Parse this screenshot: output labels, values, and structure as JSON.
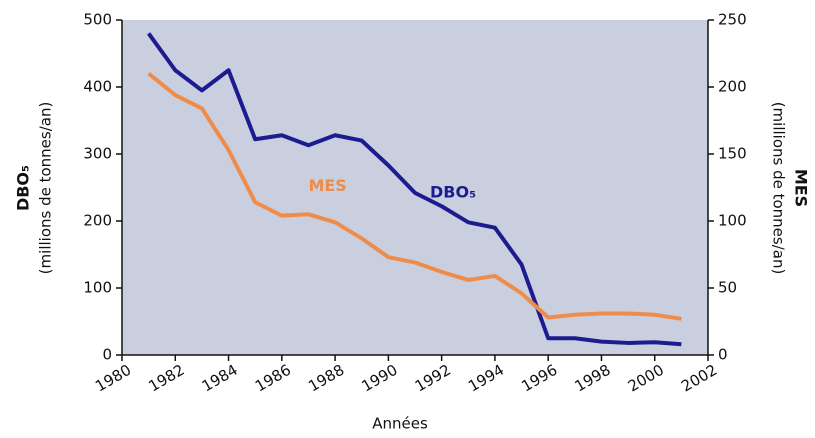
{
  "chart_data": {
    "type": "line",
    "x": [
      1981,
      1982,
      1983,
      1984,
      1985,
      1986,
      1987,
      1988,
      1989,
      1990,
      1991,
      1992,
      1993,
      1994,
      1995,
      1996,
      1997,
      1998,
      1999,
      2000,
      2001
    ],
    "series": [
      {
        "name": "DBO₅",
        "color": "#1c1c90",
        "axis": "y",
        "values": [
          480,
          425,
          395,
          425,
          322,
          328,
          313,
          328,
          320,
          283,
          242,
          222,
          198,
          190,
          135,
          25,
          25,
          20,
          18,
          19,
          16
        ]
      },
      {
        "name": "MES",
        "color": "#f08c4a",
        "axis": "y2",
        "values": [
          210,
          194,
          184,
          153,
          114,
          104,
          105,
          99,
          87,
          73,
          69,
          62,
          56,
          59,
          46,
          28,
          30,
          31,
          31,
          30,
          27
        ]
      }
    ],
    "xlabel": "Années",
    "ylabel": [
      "DBO₅",
      "(millions de tonnes/an)"
    ],
    "y2label": [
      "MES",
      "(millions de tonnes/an)"
    ],
    "xlim": [
      1980,
      2002
    ],
    "xticks": [
      1980,
      1982,
      1984,
      1986,
      1988,
      1990,
      1992,
      1994,
      1996,
      1998,
      2000,
      2002
    ],
    "ylim": [
      0,
      500
    ],
    "yticks": [
      0,
      100,
      200,
      300,
      400,
      500
    ],
    "y2lim": [
      0,
      250
    ],
    "y2ticks": [
      0,
      50,
      100,
      150,
      200,
      250
    ],
    "background": "#c9cfdf"
  }
}
